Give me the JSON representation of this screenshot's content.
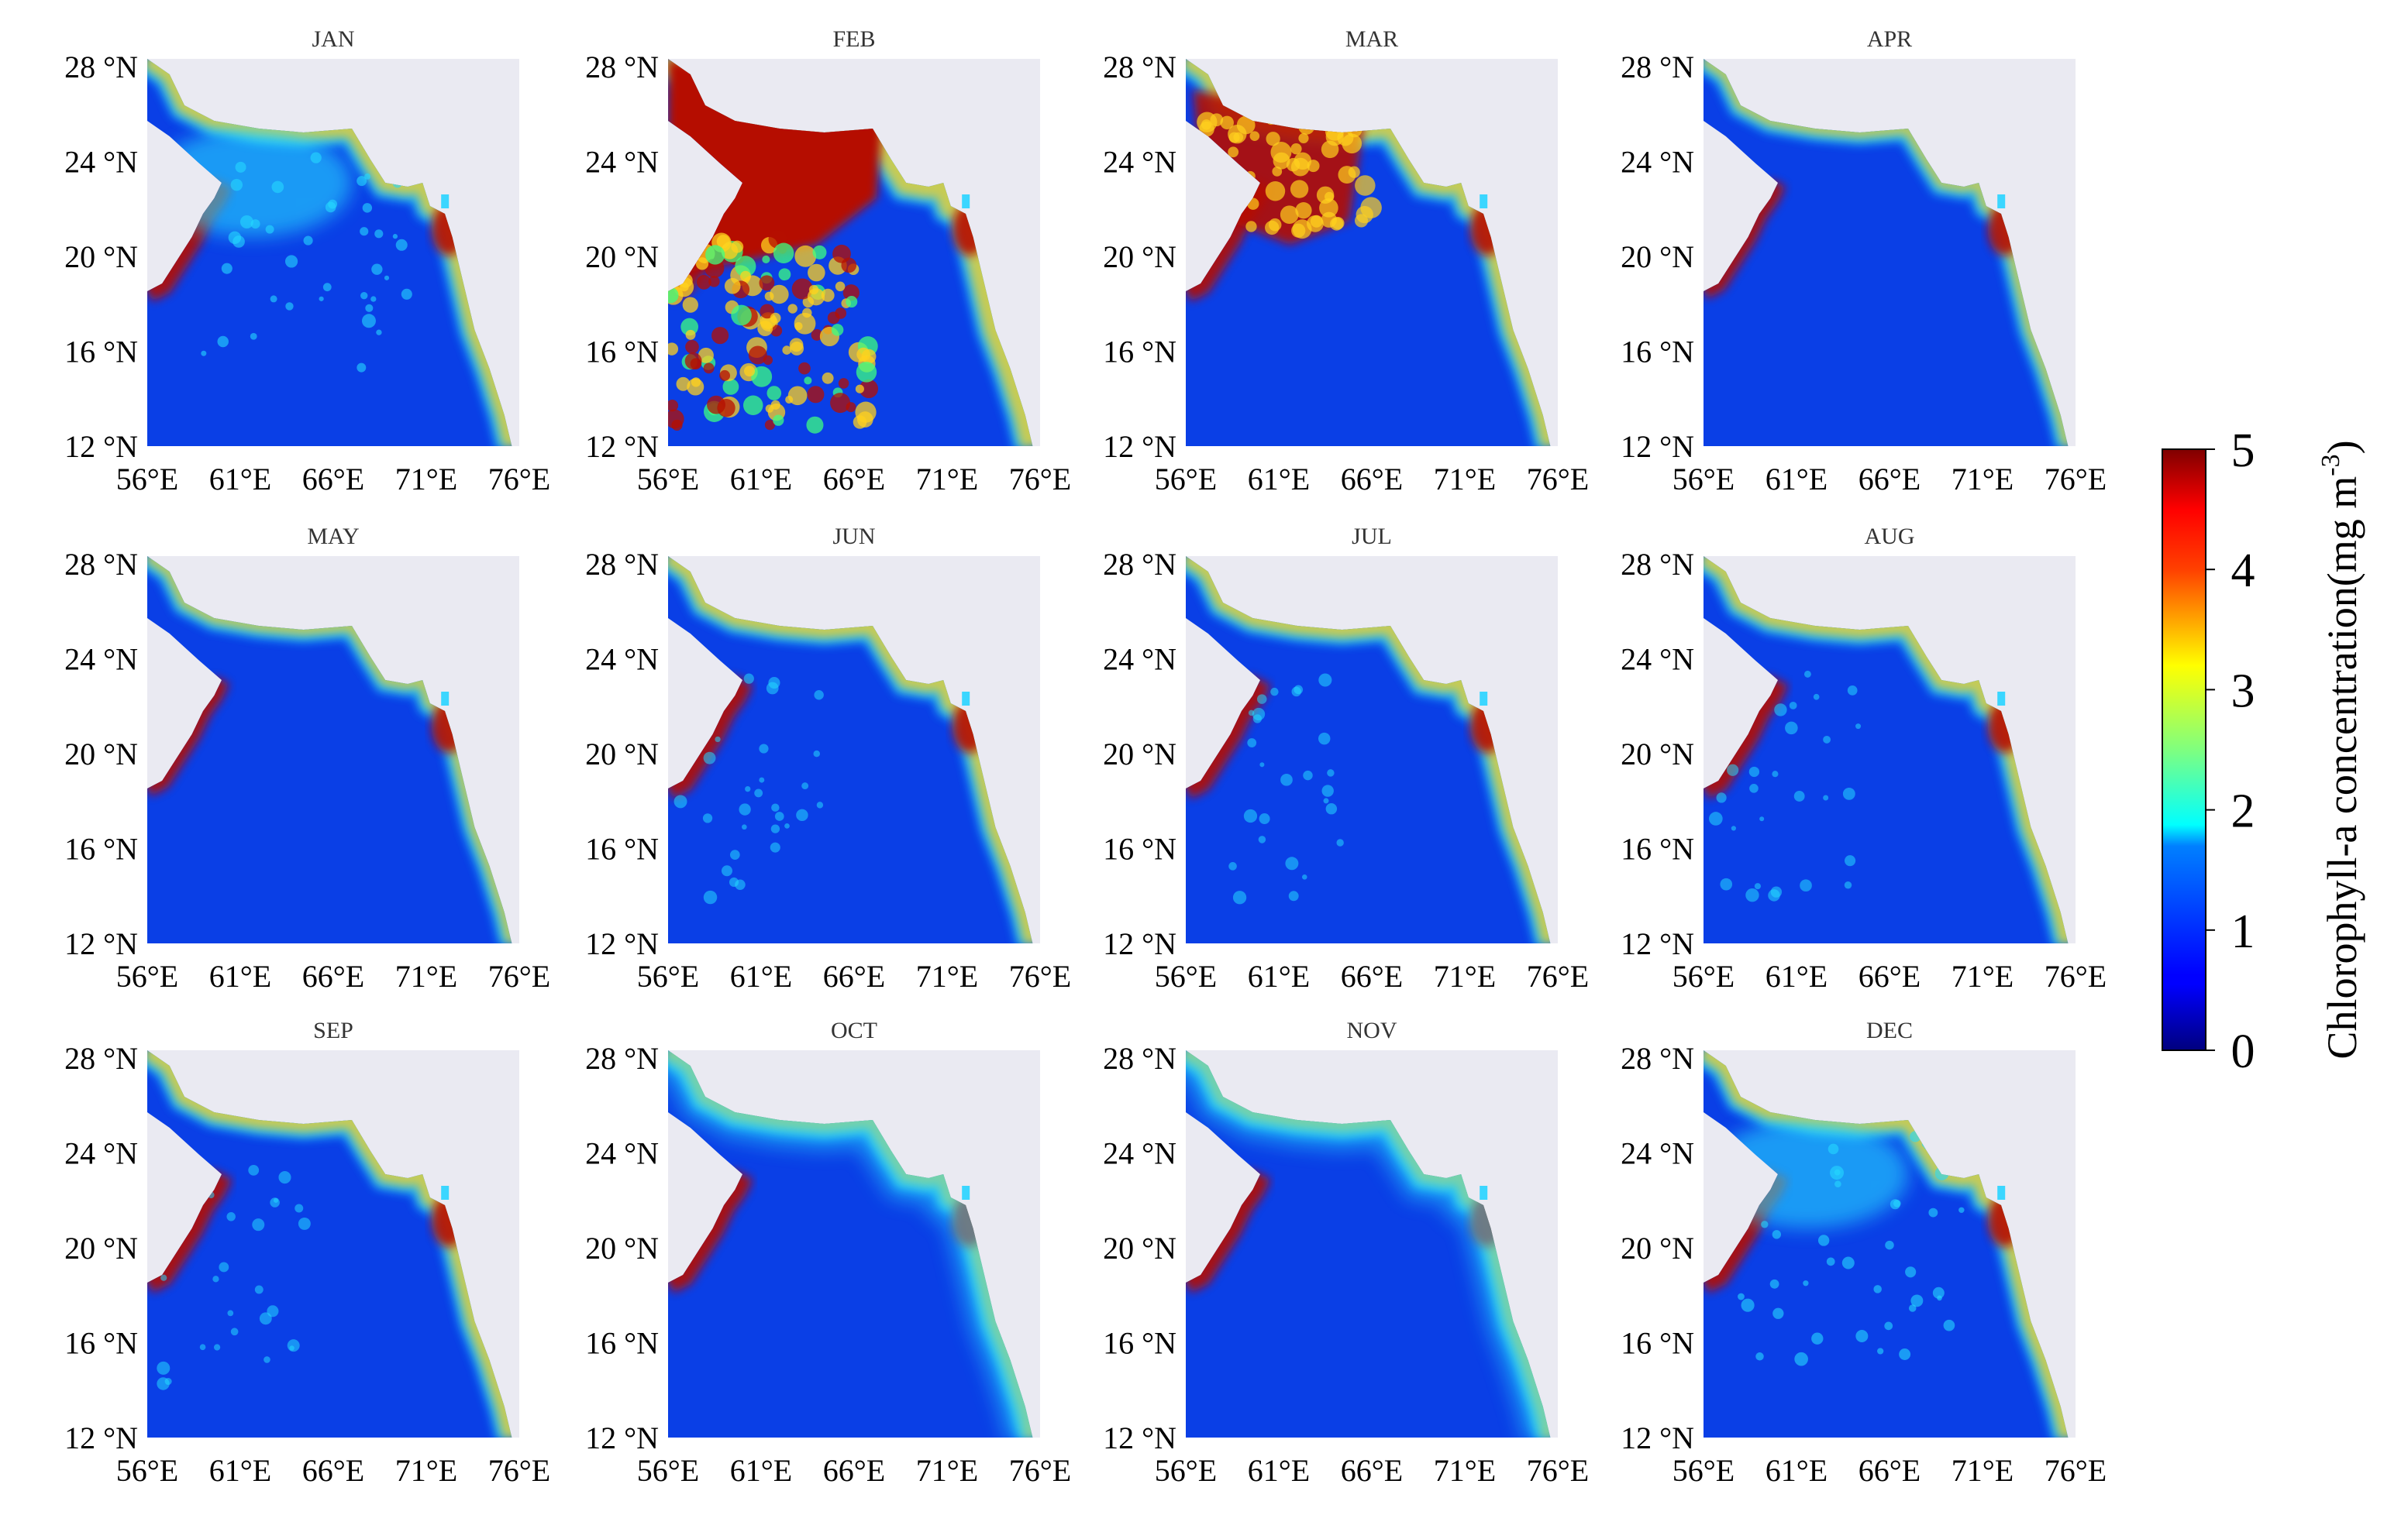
{
  "figure": {
    "lat_ticks": [
      "28 °N",
      "24 °N",
      "20 °N",
      "16 °N",
      "12 °N"
    ],
    "lon_ticks": [
      "56°E",
      "61°E",
      "66°E",
      "71°E",
      "76°E"
    ],
    "panels": [
      {
        "month": "JAN",
        "pattern": "jan"
      },
      {
        "month": "FEB",
        "pattern": "feb"
      },
      {
        "month": "MAR",
        "pattern": "mar"
      },
      {
        "month": "APR",
        "pattern": "low"
      },
      {
        "month": "MAY",
        "pattern": "low"
      },
      {
        "month": "JUN",
        "pattern": "mid"
      },
      {
        "month": "JUL",
        "pattern": "mid"
      },
      {
        "month": "AUG",
        "pattern": "mid"
      },
      {
        "month": "SEP",
        "pattern": "mid"
      },
      {
        "month": "OCT",
        "pattern": "shelf"
      },
      {
        "month": "NOV",
        "pattern": "shelf"
      },
      {
        "month": "DEC",
        "pattern": "dec"
      }
    ],
    "colorbar": {
      "label": "Chlorophyll-a concentration(mg m",
      "label_superscript": "-3",
      "label_close": ")",
      "ticks": [
        "5",
        "4",
        "3",
        "2",
        "1",
        "0"
      ],
      "range": [
        0,
        5
      ],
      "colormap": "jet"
    },
    "colors": {
      "ocean": "#0a3fe6",
      "land": "#eaeaf2",
      "high": "#b50f00",
      "mid": "#ffd21e",
      "cyan": "#25d8ff"
    }
  }
}
